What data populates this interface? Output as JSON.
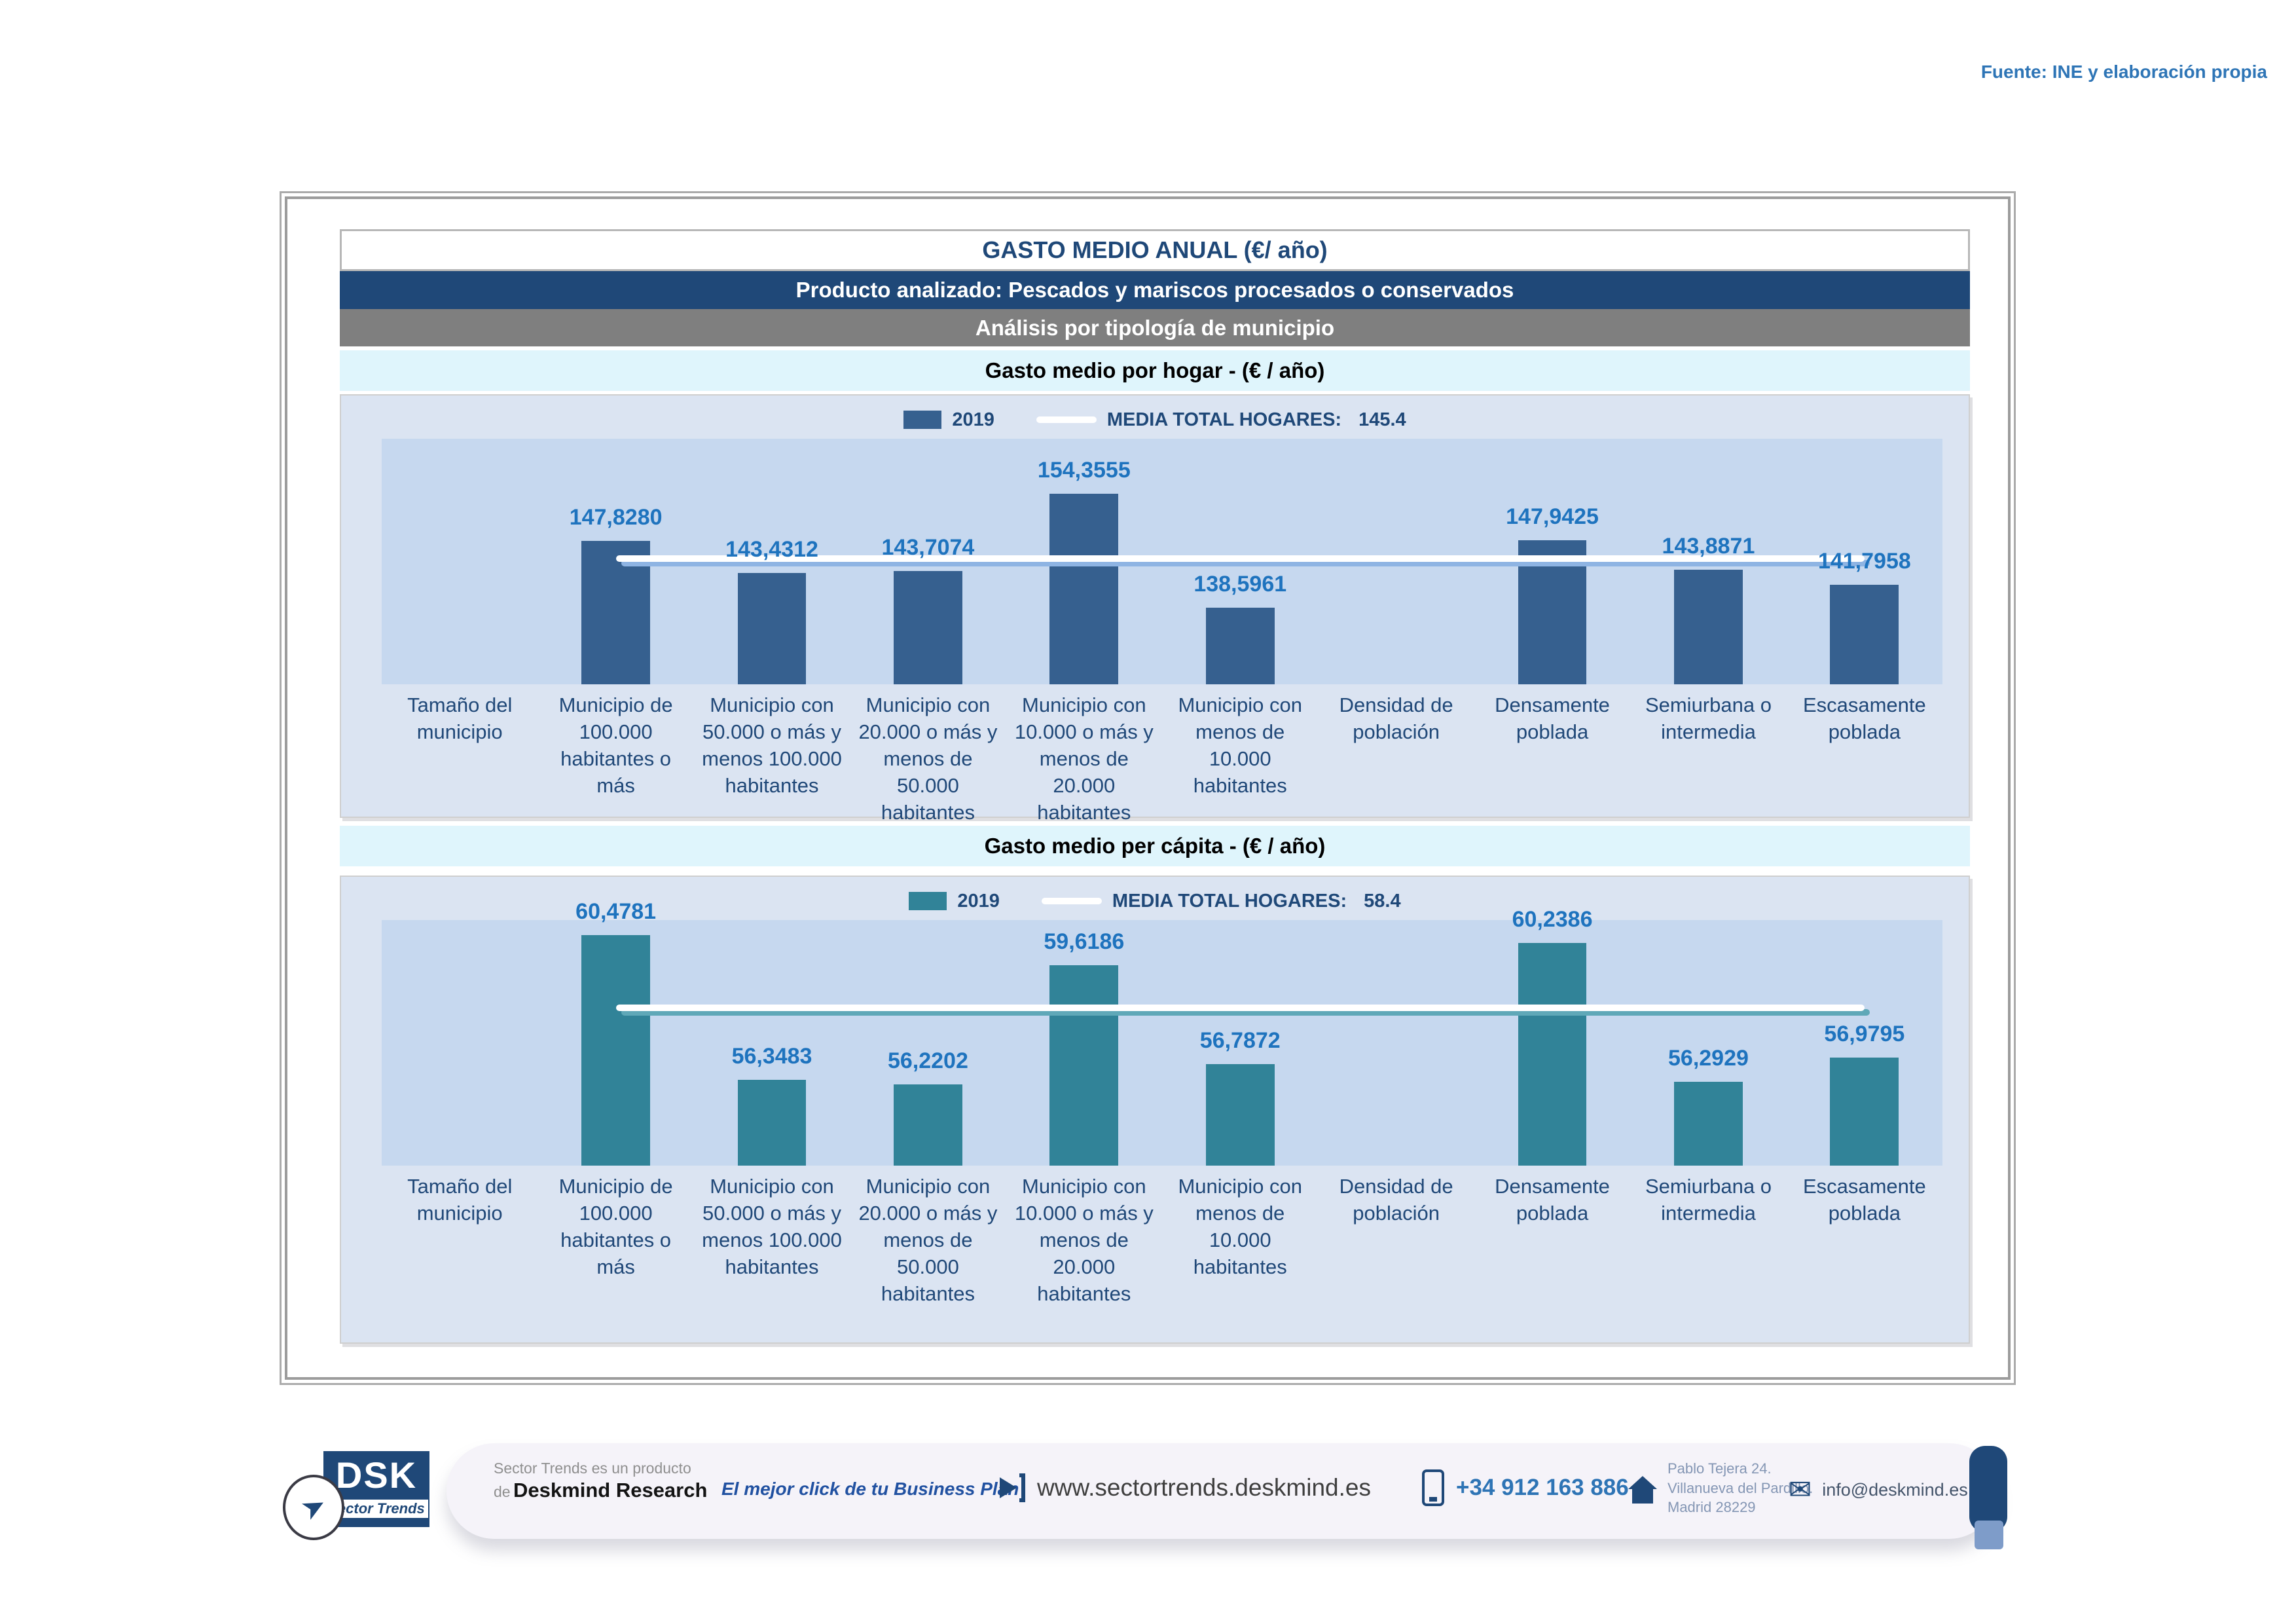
{
  "fuente": "Fuente: INE y elaboración propia",
  "header": {
    "title": "GASTO MEDIO ANUAL (€/ año)",
    "product_band": "Producto analizado: Pescados y mariscos procesados o conservados",
    "analysis_band": "Análisis por tipología de municipio"
  },
  "chart_data": [
    {
      "type": "bar",
      "title": "Gasto medio por hogar -  (€ / año)",
      "series_name": "2019",
      "media_label": "MEDIA TOTAL  HOGARES:",
      "media_value": "145.4",
      "ylim": [
        128,
        162
      ],
      "grid": false,
      "legend_position": "top-center",
      "bar_color": "#36608F",
      "media_line_color": "#FFFFFF",
      "media_shadow_color": "#8EB4E3",
      "categories": [
        "Tamaño del municipio",
        "Municipio de 100.000 habitantes o más",
        "Municipio con 50.000 o más y menos 100.000 habitantes",
        "Municipio con 20.000 o más y menos de 50.000 habitantes",
        "Municipio con 10.000 o más y menos de 20.000 habitantes",
        "Municipio con menos de 10.000 habitantes",
        "Densidad de población",
        "Densamente poblada",
        "Semiurbana o intermedia",
        "Escasamente poblada"
      ],
      "values": [
        null,
        147.828,
        143.4312,
        143.7074,
        154.3555,
        138.5961,
        null,
        147.9425,
        143.8871,
        141.7958
      ],
      "value_labels": [
        null,
        "147,8280",
        "143,4312",
        "143,7074",
        "154,3555",
        "138,5961",
        null,
        "147,9425",
        "143,8871",
        "141,7958"
      ]
    },
    {
      "type": "bar",
      "title": "Gasto medio per cápita -  (€ / año)",
      "series_name": "2019",
      "media_label": "MEDIA TOTAL  HOGARES:",
      "media_value": "58.4",
      "ylim": [
        53.9,
        60.9
      ],
      "grid": false,
      "legend_position": "top-center",
      "bar_color": "#318398",
      "media_line_color": "#FFFFFF",
      "media_shadow_color": "#5FA8B8",
      "categories": [
        "Tamaño del municipio",
        "Municipio de 100.000 habitantes o más",
        "Municipio con 50.000 o más y menos 100.000 habitantes",
        "Municipio con 20.000 o más y menos de 50.000 habitantes",
        "Municipio con 10.000 o más y menos de 20.000 habitantes",
        "Municipio con menos de 10.000 habitantes",
        "Densidad de población",
        "Densamente poblada",
        "Semiurbana o intermedia",
        "Escasamente poblada"
      ],
      "values": [
        null,
        60.4781,
        56.3483,
        56.2202,
        59.6186,
        56.7872,
        null,
        60.2386,
        56.2929,
        56.9795
      ],
      "value_labels": [
        null,
        "60,4781",
        "56,3483",
        "56,2202",
        "59,6186",
        "56,7872",
        null,
        "60,2386",
        "56,2929",
        "56,9795"
      ]
    }
  ],
  "footer": {
    "logo_dsk": "DSK",
    "logo_sector_trends": "Sector Trends",
    "product_line1": "Sector Trends es un producto",
    "product_de": "de",
    "product_bold": "Deskmind Research",
    "tagline": "El mejor click de tu Business Plan",
    "website": "www.sectortrends.deskmind.es",
    "phone": "+34 912 163 886",
    "address_line1": "Pablo Tejera 24.",
    "address_line2": "Villanueva del Pardillo.",
    "address_line3": "Madrid 28229",
    "email": "info@deskmind.es"
  },
  "colors": {
    "navy_band": "#1F4878",
    "gray_band": "#7F7F7F",
    "cyan_band": "#DFF5FC",
    "section_bg": "#DBE4F2",
    "plot_bg": "#C6D8EF",
    "bar_blue": "#36608F",
    "bar_teal": "#318398",
    "value_label_blue": "#1E73BE",
    "category_navy": "#204878",
    "fuente_blue": "#2E75B6"
  }
}
